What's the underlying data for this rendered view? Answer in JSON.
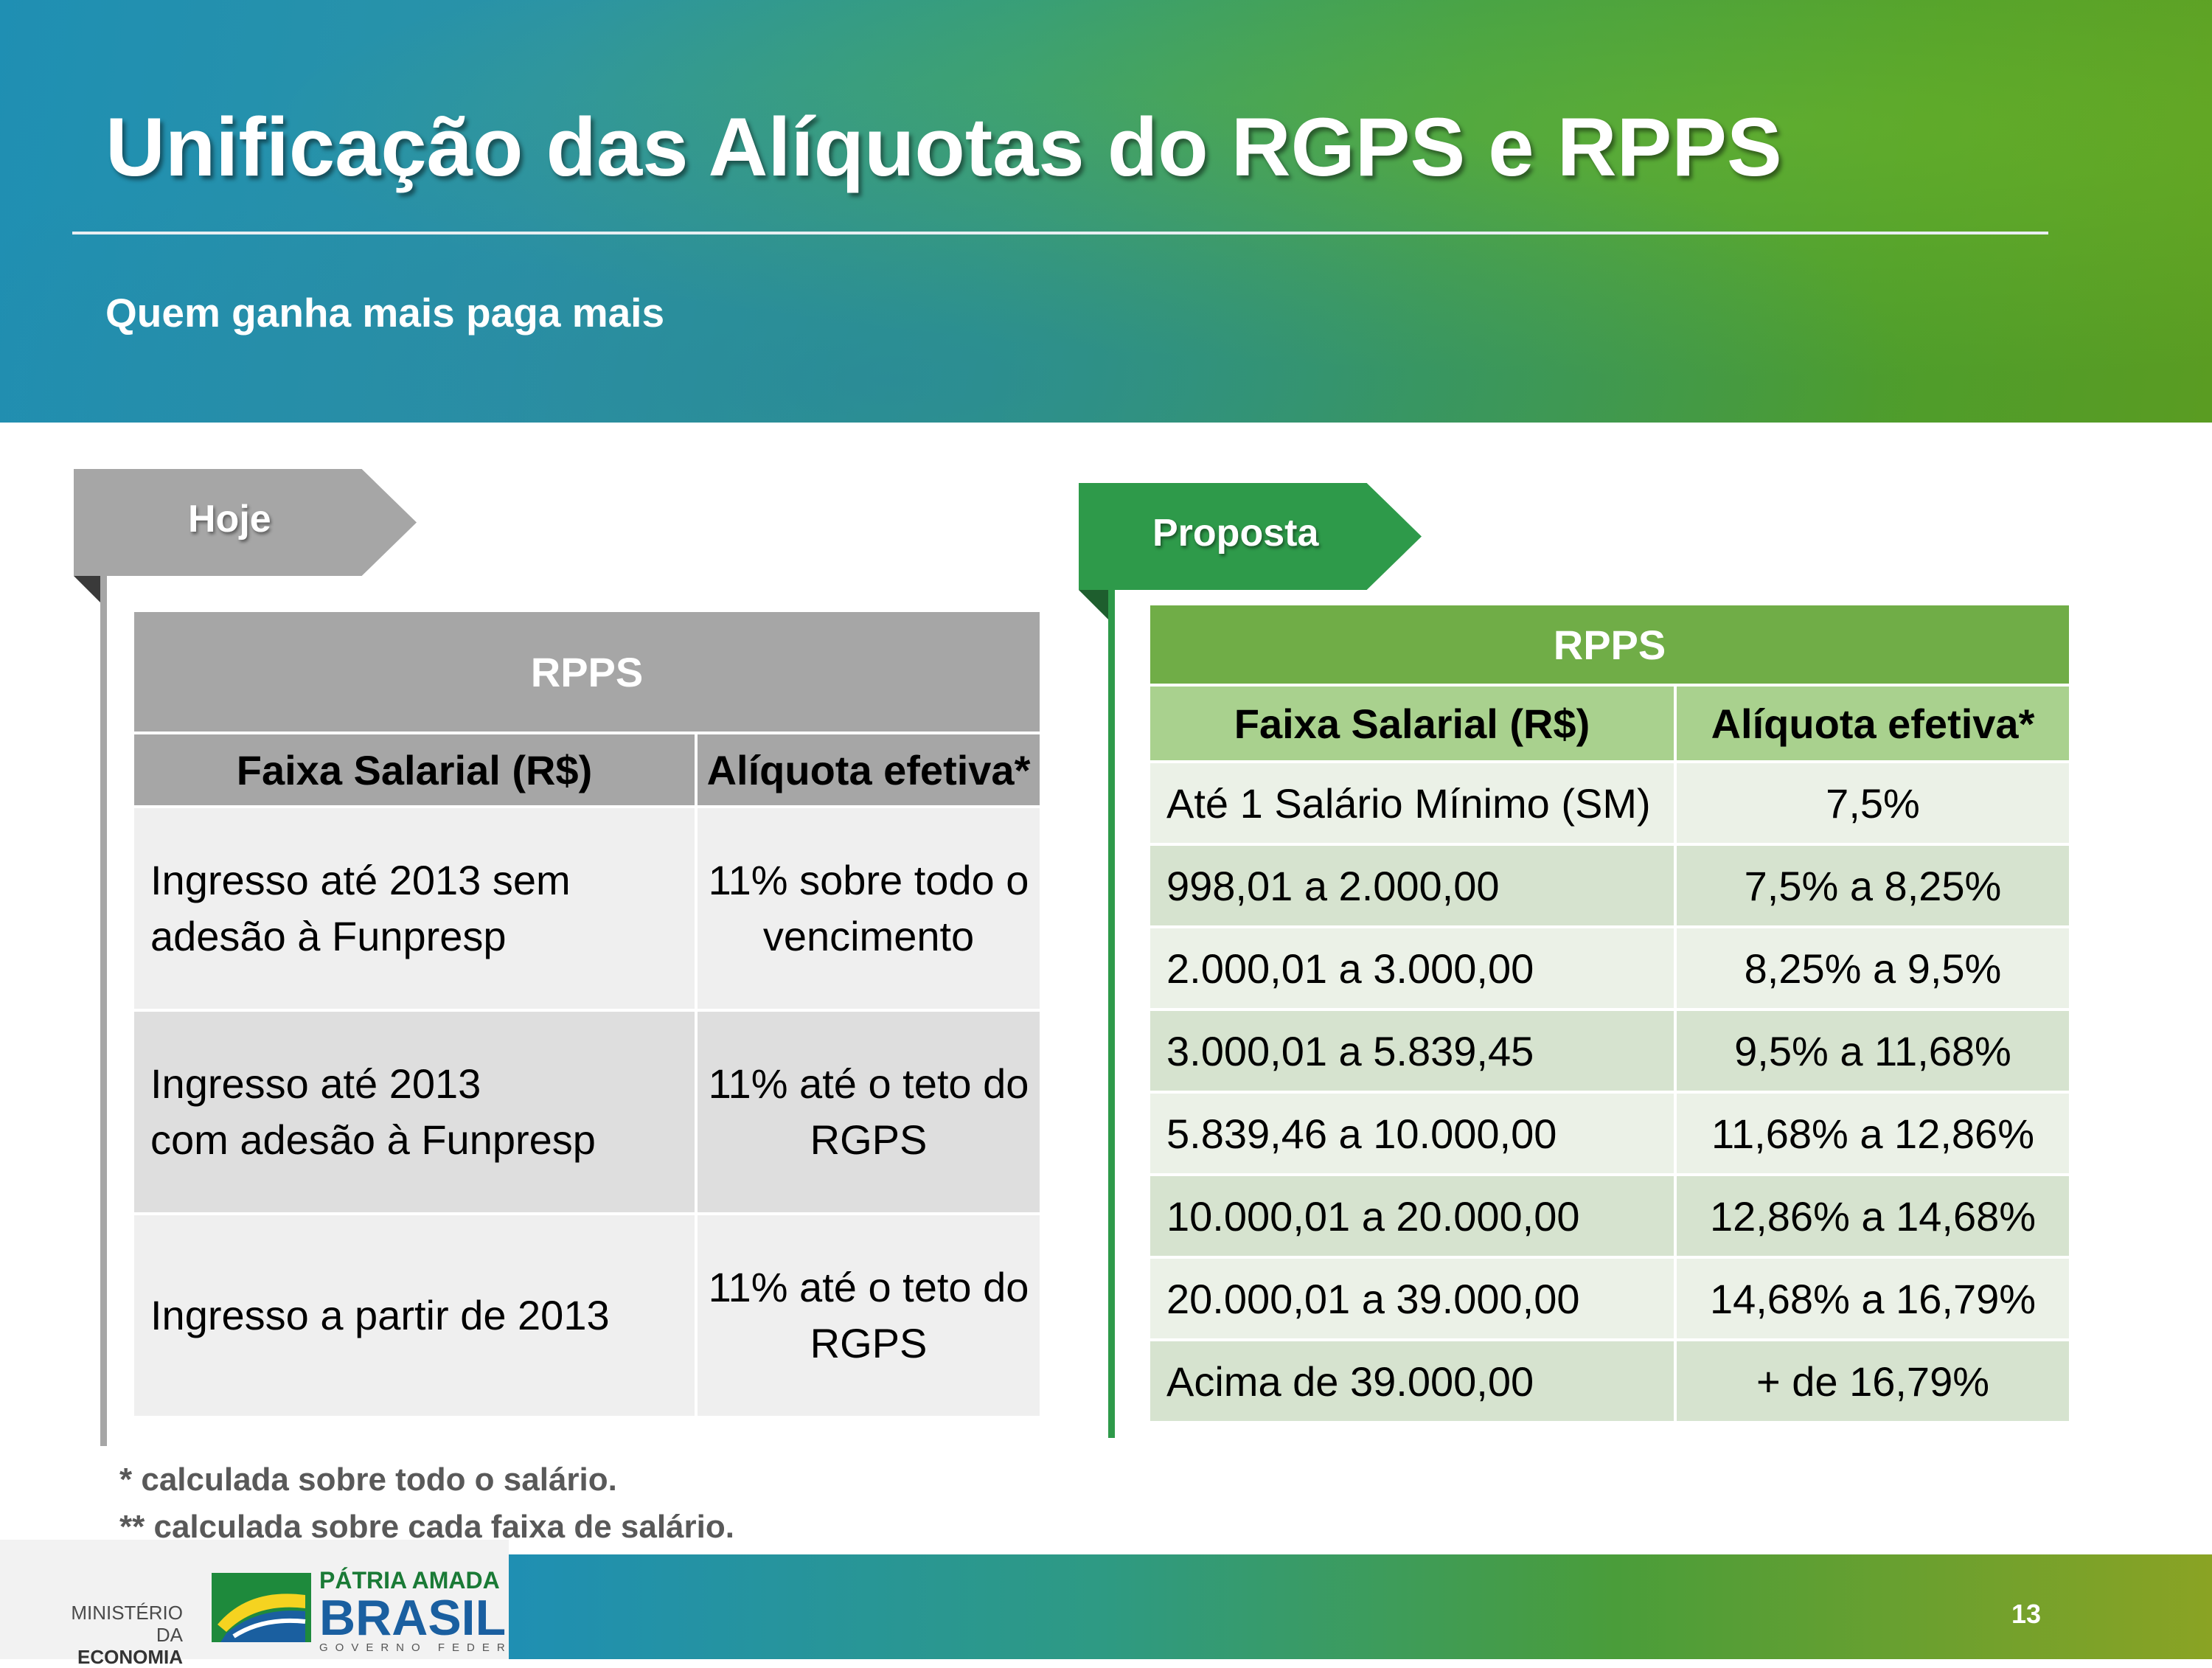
{
  "header": {
    "title": "Unificação das Alíquotas do RGPS e RPPS",
    "subtitle": "Quem ganha mais paga mais"
  },
  "hoje": {
    "tag": "Hoje",
    "caption": "RPPS",
    "col1": "Faixa Salarial (R$)",
    "col2": "Alíquota efetiva*",
    "rows": [
      {
        "faixa_l1": "Ingresso até 2013 sem",
        "faixa_l2": "adesão à Funpresp",
        "aliq_l1": "11% sobre todo o",
        "aliq_l2": "vencimento"
      },
      {
        "faixa_l1": "Ingresso até 2013",
        "faixa_l2": "com adesão à Funpresp",
        "aliq_l1": "11% até o teto do",
        "aliq_l2": "RGPS"
      },
      {
        "faixa_l1": "Ingresso a partir de 2013",
        "faixa_l2": "",
        "aliq_l1": "11% até o teto do",
        "aliq_l2": "RGPS"
      }
    ]
  },
  "proposta": {
    "tag": "Proposta",
    "caption": "RPPS",
    "col1": "Faixa Salarial (R$)",
    "col2": "Alíquota efetiva*",
    "rows": [
      {
        "faixa": "Até 1 Salário Mínimo (SM)",
        "aliquota": "7,5%"
      },
      {
        "faixa": "998,01 a 2.000,00",
        "aliquota": "7,5% a 8,25%"
      },
      {
        "faixa": "2.000,01 a 3.000,00",
        "aliquota": "8,25% a 9,5%"
      },
      {
        "faixa": "3.000,01 a 5.839,45",
        "aliquota": "9,5% a 11,68%"
      },
      {
        "faixa": "5.839,46 a 10.000,00",
        "aliquota": "11,68% a 12,86%"
      },
      {
        "faixa": "10.000,01 a 20.000,00",
        "aliquota": "12,86% a 14,68%"
      },
      {
        "faixa": "20.000,01 a 39.000,00",
        "aliquota": "14,68% a 16,79%"
      },
      {
        "faixa": "Acima de 39.000,00",
        "aliquota": "+ de 16,79%"
      }
    ]
  },
  "footnotes": {
    "fn1": "*   calculada sobre todo o salário.",
    "fn2": "** calculada sobre cada faixa de salário."
  },
  "footer": {
    "ministerio_l1": "MINISTÉRIO DA",
    "ministerio_l2": "ECONOMIA",
    "logo_l1": "PÁTRIA AMADA",
    "logo_l2": "BRASIL",
    "logo_l3": "GOVERNO FEDERAL",
    "page_number": "13"
  },
  "colors": {
    "hoje_gray": "#a6a6a6",
    "proposta_green": "#2e9a4a",
    "caption_green": "#70ad47",
    "header_green": "#a9d18e"
  }
}
